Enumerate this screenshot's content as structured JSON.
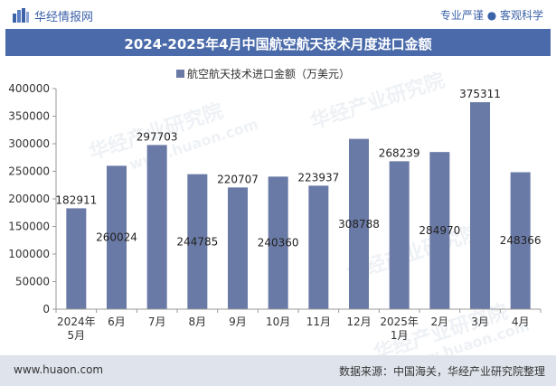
{
  "header": {
    "brand": "华经情报网",
    "tagline": "专业严谨 ● 客观科学"
  },
  "watermark": {
    "brand": "华经产业研究院",
    "url": "www.huaon.com"
  },
  "footer": {
    "website": "www.huaon.com",
    "source": "数据来源：中国海关，华经产业研究院整理"
  },
  "colors": {
    "bar": "#6a7aa6",
    "title_bg": "#4a6aaa",
    "brand": "#3c62a8",
    "footer_bg": "#dfe4ec"
  },
  "chart_data": {
    "type": "bar",
    "title": "2024-2025年4月中国航空航天技术月度进口金额",
    "categories": [
      [
        "2024年",
        "5月"
      ],
      [
        "6月"
      ],
      [
        "7月"
      ],
      [
        "8月"
      ],
      [
        "9月"
      ],
      [
        "10月"
      ],
      [
        "11月"
      ],
      [
        "12月"
      ],
      [
        "2025年",
        "1月"
      ],
      [
        "2月"
      ],
      [
        "3月"
      ],
      [
        "4月"
      ]
    ],
    "series": [
      {
        "name": "航空航天技术进口金额（万美元）",
        "values": [
          182911,
          260024,
          297703,
          244785,
          220707,
          240360,
          223937,
          308788,
          268239,
          284970,
          375311,
          248366
        ]
      }
    ],
    "label_positions": [
      "above",
      "inside",
      "above",
      "inside",
      "above",
      "inside",
      "above",
      "inside",
      "above",
      "inside",
      "above",
      "inside"
    ],
    "ylim": [
      0,
      400000
    ],
    "yticks": [
      0,
      50000,
      100000,
      150000,
      200000,
      250000,
      300000,
      350000,
      400000
    ],
    "legend": "top-center",
    "grid": false
  }
}
